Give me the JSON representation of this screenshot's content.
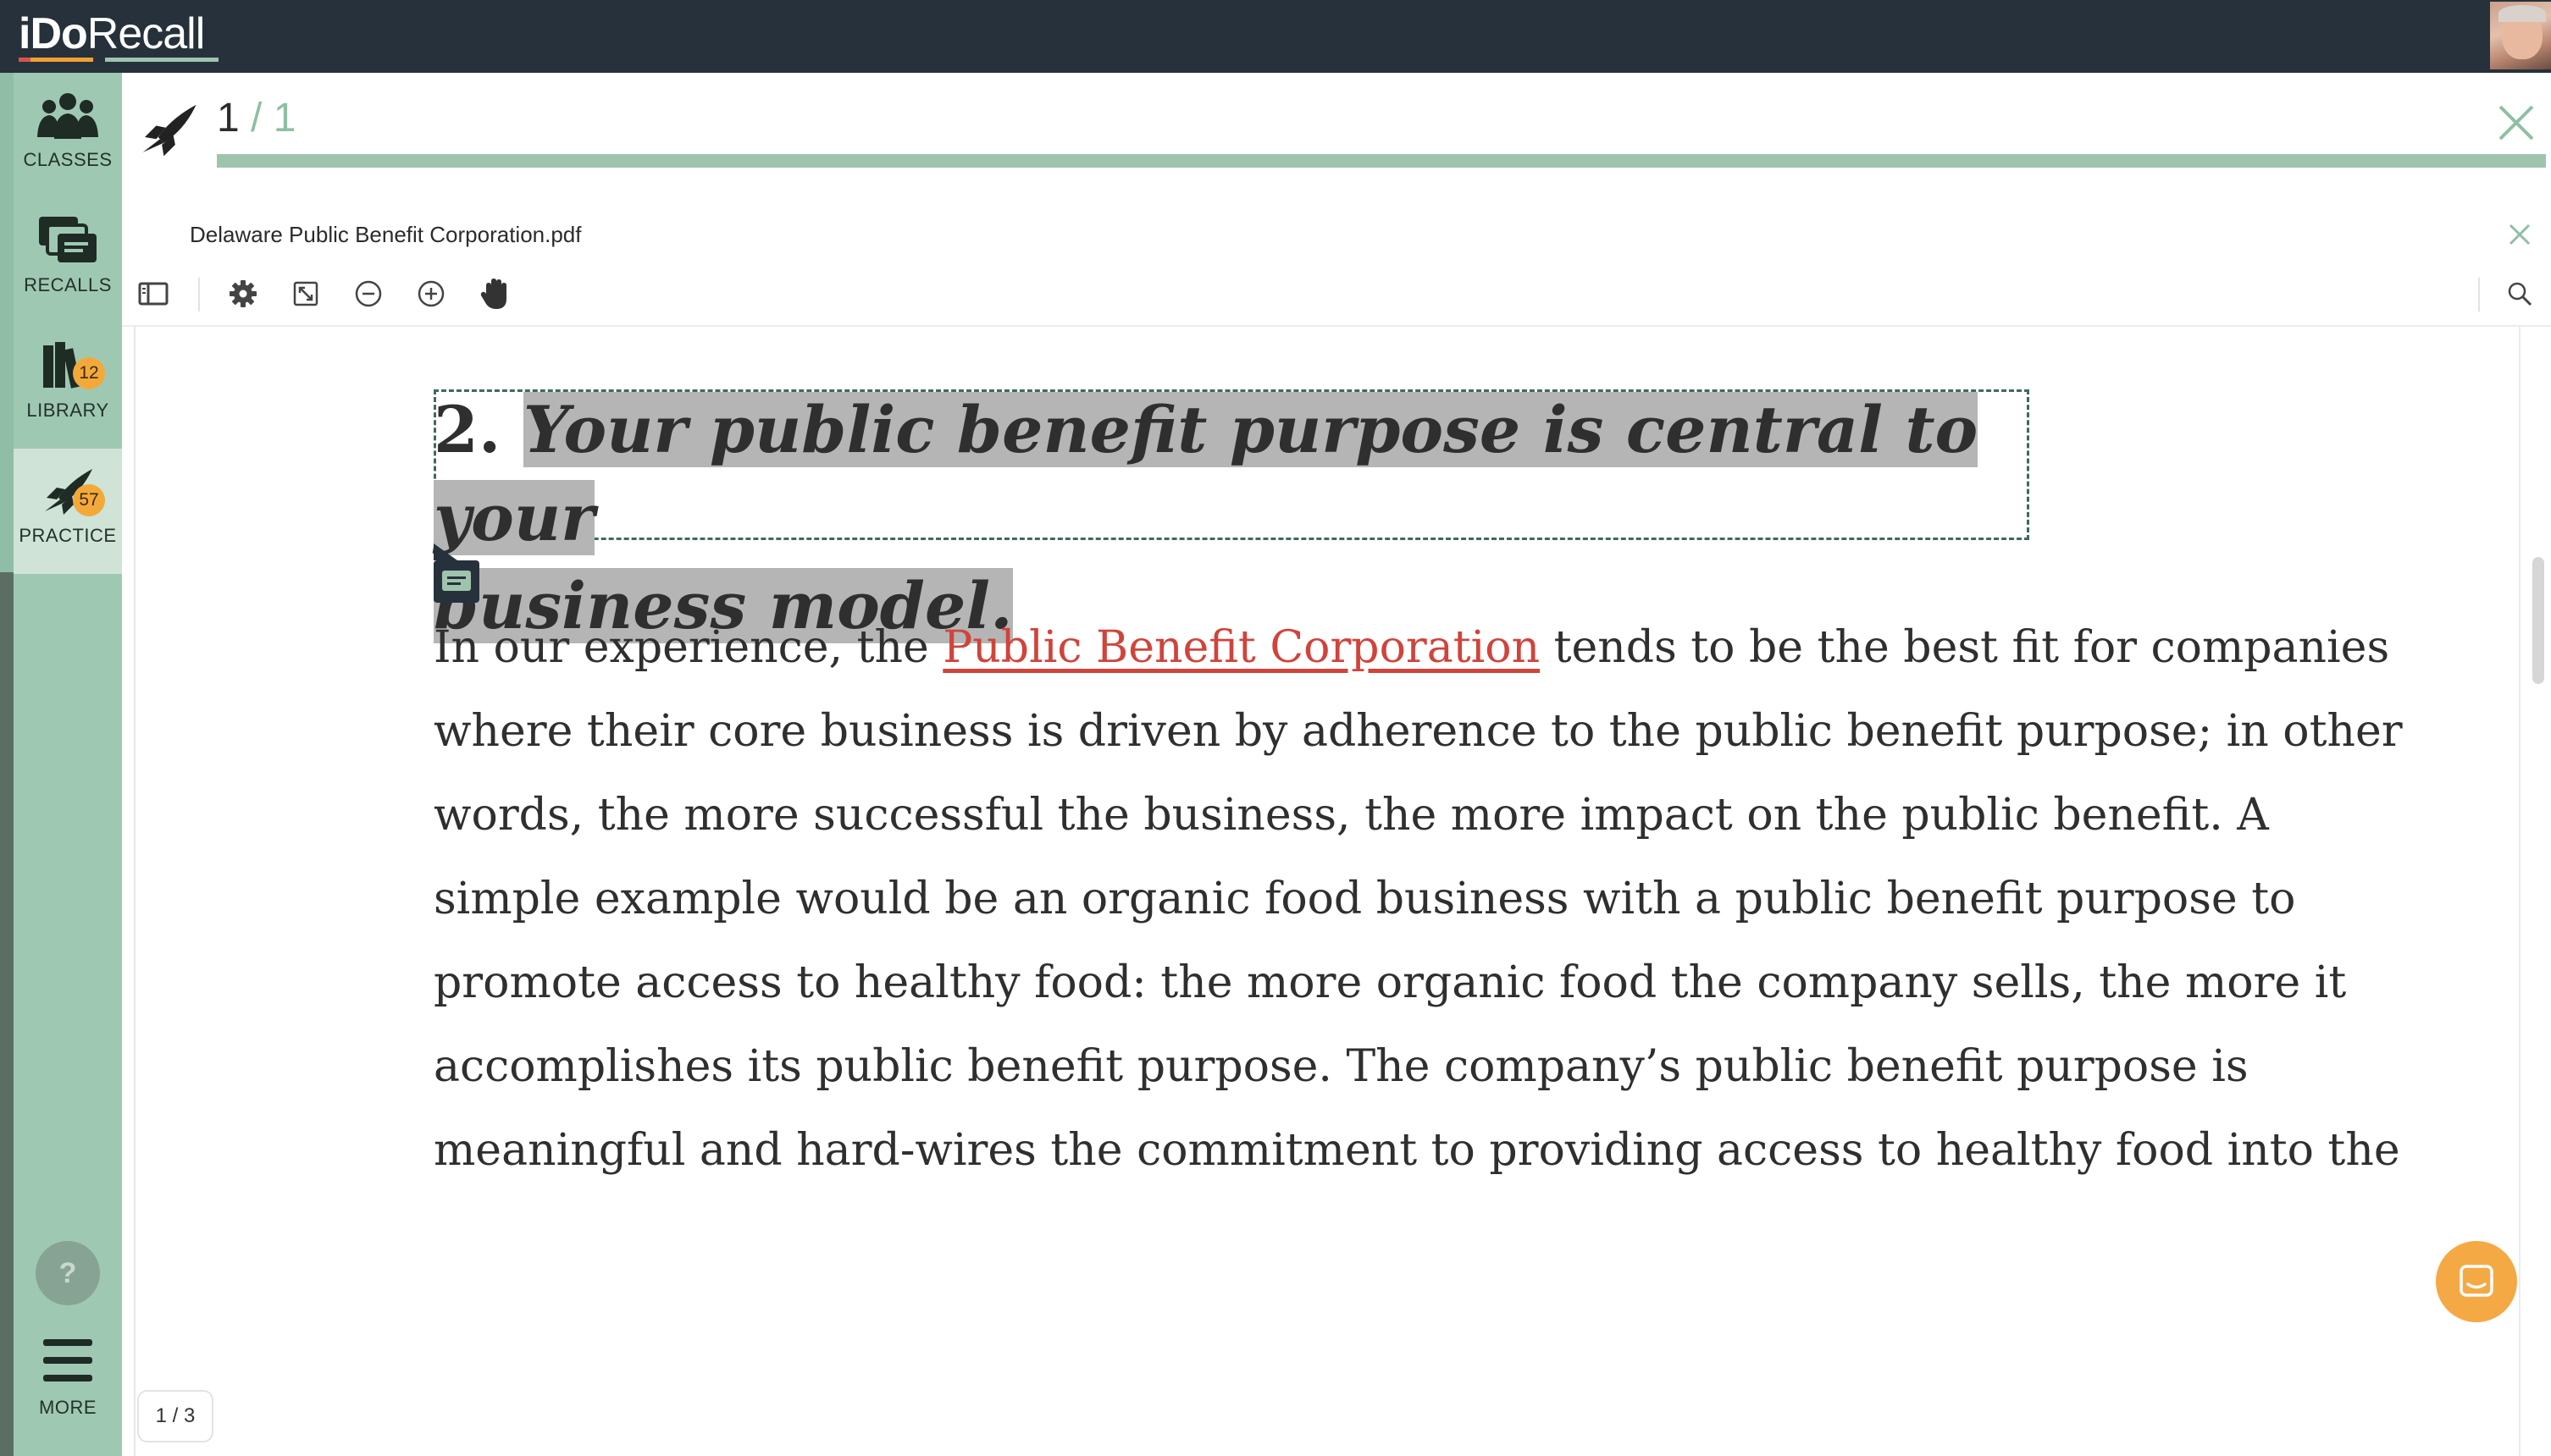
{
  "app": {
    "logo_bold": "iDo",
    "logo_regular": "Recall"
  },
  "sidebar": {
    "items": [
      {
        "label": "CLASSES",
        "icon": "people-icon"
      },
      {
        "label": "RECALLS",
        "icon": "cards-icon"
      },
      {
        "label": "LIBRARY",
        "icon": "books-icon",
        "badge": "12"
      },
      {
        "label": "PRACTICE",
        "icon": "rocket-icon",
        "badge": "57",
        "active": true
      }
    ],
    "help_label": "?",
    "more_label": "MORE"
  },
  "practice": {
    "current": "1",
    "separator_total": " / 1",
    "progress": 1.0
  },
  "pdf": {
    "filename": "Delaware Public Benefit Corporation.pdf",
    "page_indicator": "1 / 3"
  },
  "document": {
    "heading_number": "2.",
    "heading_line1": "Your public benefit purpose is central to your",
    "heading_line2": "business model.",
    "body_line1_before": "In our experience, the ",
    "body_link": "Public Benefit Corporation",
    "body_line1_after": " tends to be the best fit for companies",
    "body_lines": [
      "where their core business is driven by adherence to the public benefit purpose; in other",
      "words, the more successful the business, the more impact on the public benefit. A",
      "simple example would be an organic food business with a public benefit purpose to",
      "promote access to healthy food: the more organic food the company sells, the more it",
      "accomplishes its public benefit purpose. The company’s public benefit purpose is",
      "meaningful and hard-wires the commitment to providing access to healthy food into the"
    ]
  },
  "colors": {
    "topbar": "#27313b",
    "sidebar": "#9fc8b2",
    "accent": "#9ec4ad",
    "badge": "#f3a93a",
    "link": "#d0443b",
    "chat": "#f5a945"
  }
}
